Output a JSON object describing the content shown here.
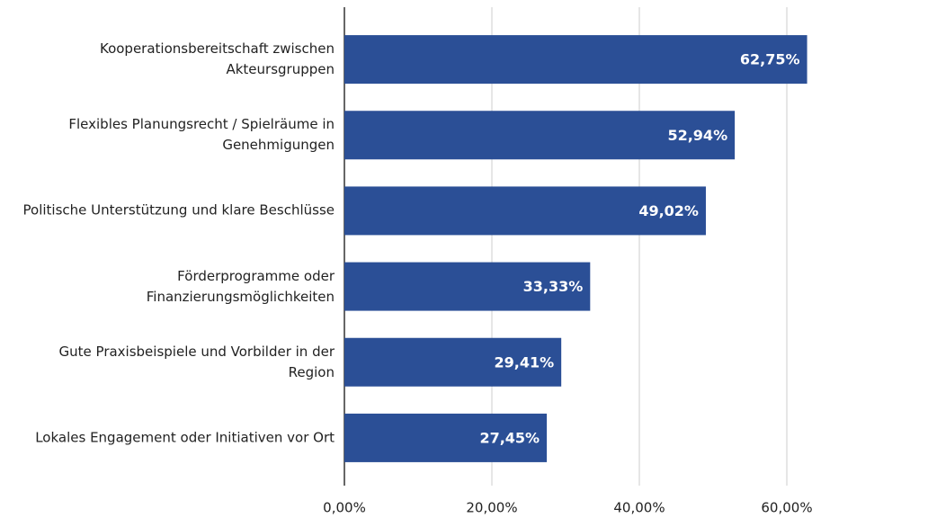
{
  "chart_data": {
    "type": "bar",
    "orientation": "horizontal",
    "categories": [
      "Kooperationsbereitschaft zwischen Akteursgruppen",
      "Flexibles Planungsrecht / Spielräume in Genehmigungen",
      "Politische Unterstützung und klare Beschlüsse",
      "Förderprogramme oder Finanzierungsmöglichkeiten",
      "Gute Praxisbeispiele und Vorbilder in der Region",
      "Lokales Engagement oder Initiativen vor Ort"
    ],
    "values": [
      62.75,
      52.94,
      49.02,
      33.33,
      29.41,
      27.45
    ],
    "value_labels": [
      "62,75%",
      "52,94%",
      "49,02%",
      "33,33%",
      "29,41%",
      "27,45%"
    ],
    "color": "#2b4f96",
    "xlim": [
      0,
      75
    ],
    "xticks": [
      {
        "value": 0,
        "label": "0,00%"
      },
      {
        "value": 20,
        "label": "20,00%"
      },
      {
        "value": 40,
        "label": "40,00%"
      },
      {
        "value": 60,
        "label": "60,00%"
      }
    ],
    "grid": true
  }
}
